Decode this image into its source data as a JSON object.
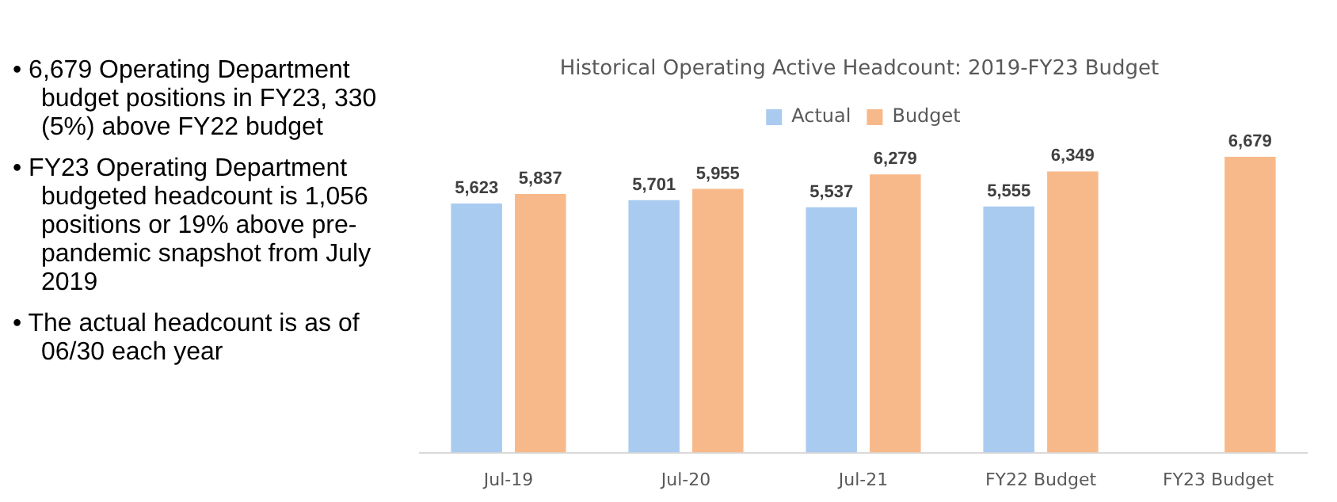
{
  "chart_data": {
    "type": "bar",
    "title": "Historical Operating Active Headcount: 2019-FY23 Budget",
    "categories": [
      "Jul-19",
      "Jul-20",
      "Jul-21",
      "FY22 Budget",
      "FY23 Budget"
    ],
    "series": [
      {
        "name": "Actual",
        "color": "#a9cbf0",
        "values": [
          5623,
          5701,
          5537,
          5555,
          null
        ],
        "value_labels": [
          "5,623",
          "5,701",
          "5,537",
          "5,555",
          null
        ]
      },
      {
        "name": "Budget",
        "color": "#f8b98a",
        "values": [
          5837,
          5955,
          6279,
          6349,
          6679
        ],
        "value_labels": [
          "5,837",
          "5,955",
          "6,279",
          "6,349",
          "6,679"
        ]
      }
    ],
    "tick_labels": "x",
    "grid": false,
    "legend": "top",
    "annotations": [
      "• 6,679 Operating Department budget positions in FY23, 330 (5%) above FY22 budget",
      "• FY23 Operating Department budgeted headcount is 1,056 positions or 19% above pre-pandemic snapshot from July 2019",
      "• The actual headcount is as of  06/30 each year"
    ]
  }
}
